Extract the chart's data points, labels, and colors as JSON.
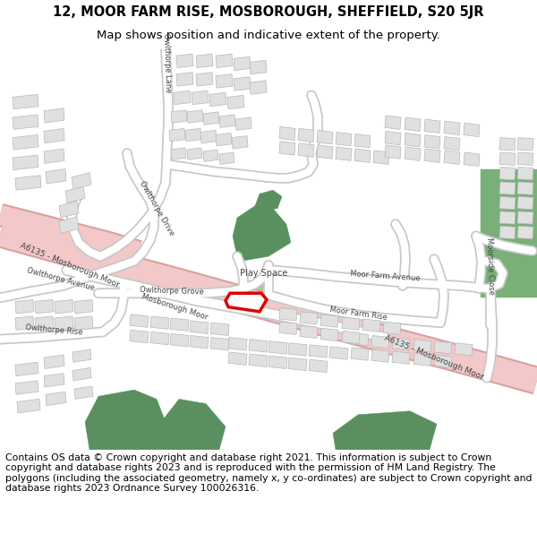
{
  "title_line1": "12, MOOR FARM RISE, MOSBOROUGH, SHEFFIELD, S20 5JR",
  "title_line2": "Map shows position and indicative extent of the property.",
  "footer": "Contains OS data © Crown copyright and database right 2021. This information is subject to Crown copyright and database rights 2023 and is reproduced with the permission of HM Land Registry. The polygons (including the associated geometry, namely x, y co-ordinates) are subject to Crown copyright and database rights 2023 Ordnance Survey 100026316.",
  "bg_color": "#ffffff",
  "map_bg": "#f2f2f2",
  "road_color": "#ffffff",
  "road_border": "#c8c8c8",
  "major_road_fill": "#f2c8c8",
  "major_road_border": "#d8a0a0",
  "green_dark": "#5a9060",
  "green_light": "#a8c8a0",
  "building_fill": "#e0e0e0",
  "building_border": "#b8b8b8",
  "property_red": "#dd0000",
  "label_color": "#444444",
  "title_fontsize": 10.5,
  "subtitle_fontsize": 9.5,
  "footer_fontsize": 7.8,
  "label_fontsize": 6.5
}
